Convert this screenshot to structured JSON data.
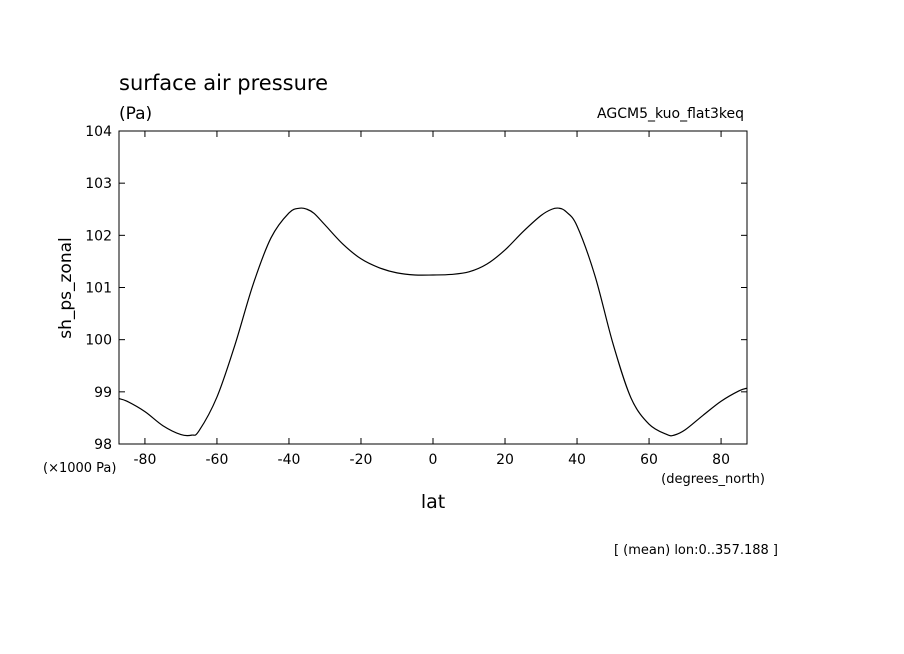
{
  "chart_data": {
    "type": "line",
    "title": "surface air pressure",
    "unit": "(Pa)",
    "run_label": "AGCM5_kuo_flat3keq",
    "ylabel": "sh_ps_zonal",
    "xlabel": "lat",
    "y_scale_note": "(×1000 Pa)",
    "x_unit_note": "(degrees_north)",
    "footnote": "[ (mean) lon:0..357.188 ]",
    "xlim": [
      -87.2,
      87.2
    ],
    "ylim": [
      98,
      104
    ],
    "xticks": [
      -80,
      -60,
      -40,
      -20,
      0,
      20,
      40,
      60,
      80
    ],
    "yticks": [
      98,
      99,
      100,
      101,
      102,
      103,
      104
    ],
    "grid": false,
    "series": [
      {
        "x": [
          -87.2,
          -85,
          -80,
          -75,
          -70,
          -67,
          -65,
          -60,
          -55,
          -50,
          -45,
          -40,
          -37,
          -35,
          -33,
          -30,
          -25,
          -20,
          -15,
          -10,
          -5,
          0,
          5,
          10,
          15,
          20,
          25,
          30,
          33,
          35,
          37,
          40,
          45,
          50,
          55,
          60,
          65,
          67,
          70,
          75,
          80,
          85,
          87.2
        ],
        "values": [
          98.87,
          98.82,
          98.62,
          98.35,
          98.18,
          98.17,
          98.25,
          98.9,
          99.9,
          101.05,
          101.95,
          102.43,
          102.52,
          102.5,
          102.42,
          102.2,
          101.83,
          101.55,
          101.38,
          101.28,
          101.24,
          101.24,
          101.25,
          101.3,
          101.45,
          101.72,
          102.07,
          102.38,
          102.5,
          102.52,
          102.45,
          102.18,
          101.22,
          99.92,
          98.88,
          98.38,
          98.18,
          98.17,
          98.27,
          98.55,
          98.82,
          99.02,
          99.07
        ]
      }
    ]
  }
}
